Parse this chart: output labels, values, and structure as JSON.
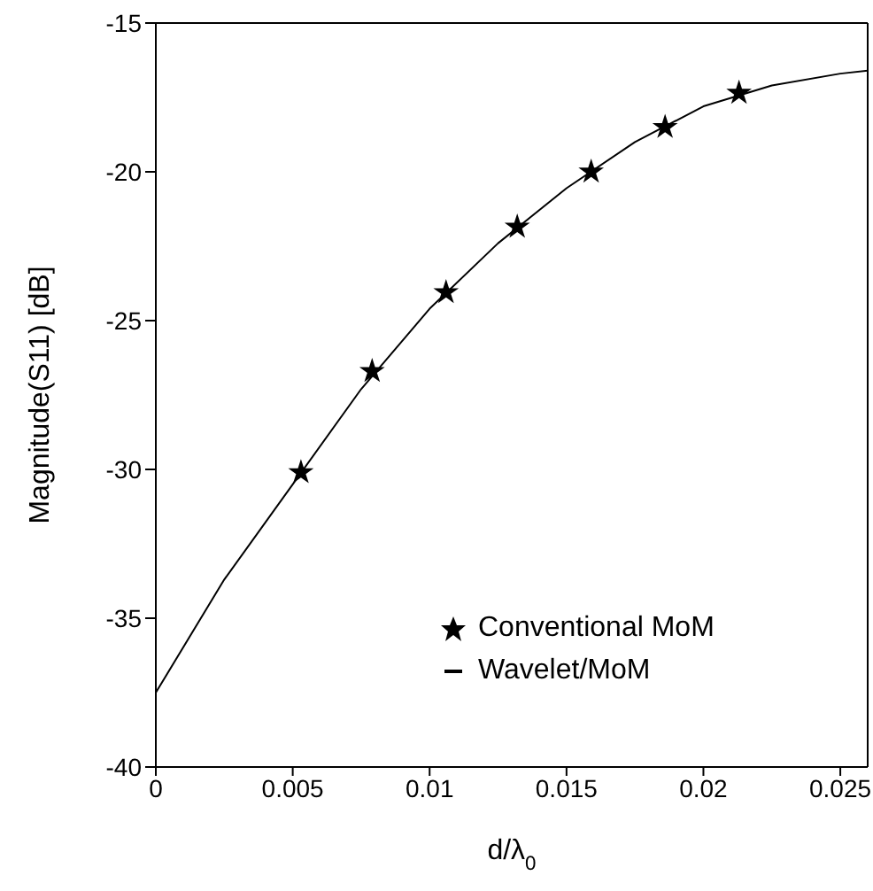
{
  "chart_data": {
    "type": "line",
    "xlabel": "d/λ$_{0}$",
    "ylabel": "Magnitude(S11) [dB]",
    "xlim": [
      0,
      0.026
    ],
    "ylim": [
      -40,
      -15
    ],
    "xticks": [
      0,
      0.005,
      0.01,
      0.015,
      0.02,
      0.025
    ],
    "yticks": [
      -40,
      -35,
      -30,
      -25,
      -20,
      -15
    ],
    "legend": "bottom right",
    "series": [
      {
        "name": "Conventional MoM",
        "type": "scatter",
        "marker": "star",
        "color": "#000000",
        "x": [
          0.0053,
          0.0079,
          0.0106,
          0.0132,
          0.0159,
          0.0186,
          0.0213
        ],
        "values": [
          -30.1,
          -26.7,
          -24.05,
          -21.85,
          -20.0,
          -18.5,
          -17.35
        ]
      },
      {
        "name": "Wavelet/MoM",
        "marker": "none",
        "line_style": "solid",
        "color": "#000000",
        "x": [
          0,
          0.0025,
          0.005,
          0.0075,
          0.01,
          0.0125,
          0.015,
          0.0175,
          0.02,
          0.0225,
          0.025,
          0.026
        ],
        "values": [
          -37.5,
          -33.7,
          -30.5,
          -27.3,
          -24.6,
          -22.4,
          -20.55,
          -19.0,
          -17.8,
          -17.1,
          -16.7,
          -16.6
        ]
      }
    ]
  }
}
